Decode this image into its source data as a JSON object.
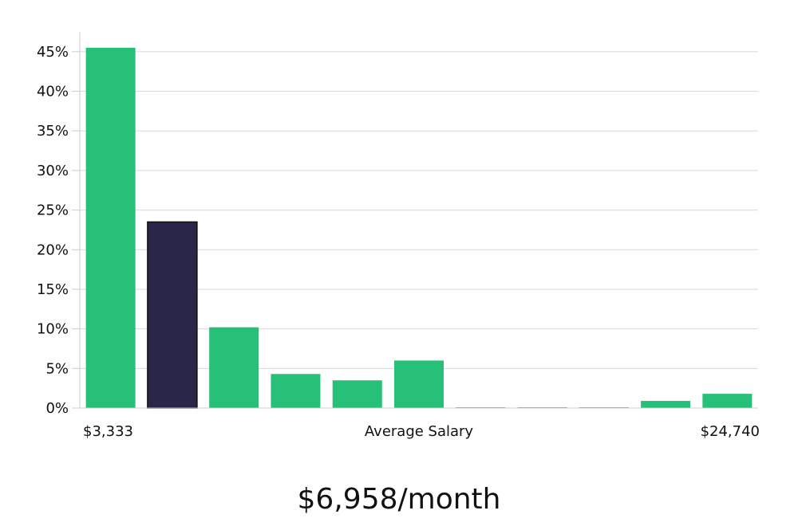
{
  "chart_data": {
    "type": "bar",
    "xlabel": "Average Salary",
    "x_start_label": "$3,333",
    "x_end_label": "$24,740",
    "ylabel": "",
    "ylim": [
      0,
      47.5
    ],
    "yticks": [
      0,
      5,
      10,
      15,
      20,
      25,
      30,
      35,
      40,
      45
    ],
    "ytick_labels": [
      "0%",
      "5%",
      "10%",
      "15%",
      "20%",
      "25%",
      "30%",
      "35%",
      "40%",
      "45%"
    ],
    "values": [
      45.5,
      23.5,
      10.2,
      4.3,
      3.5,
      6.0,
      0.1,
      0.1,
      0.1,
      0.9,
      1.8
    ],
    "highlight_index": 1,
    "grid": true,
    "colors": {
      "bar": "#27c078",
      "highlight": "#29264a",
      "highlight_border": "#111111"
    }
  },
  "summary": "$6,958/month"
}
